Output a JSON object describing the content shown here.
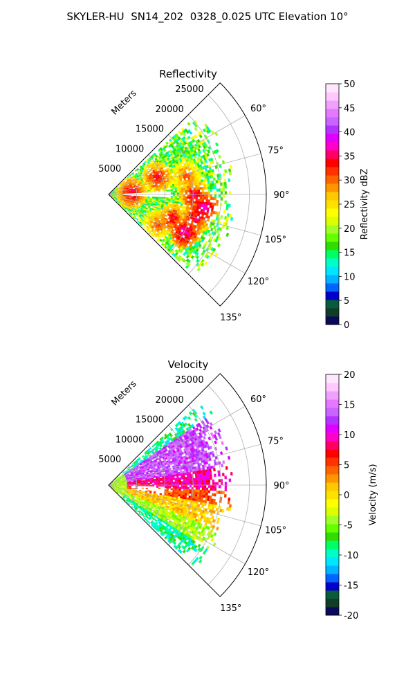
{
  "figure": {
    "title": "SKYLER-HU  SN14_202  0328_0.025 UTC Elevation 10°"
  },
  "colors": {
    "refl_colormap": [
      "#0a0a5a",
      "#103c28",
      "#0a5a3c",
      "#0000c8",
      "#0064ff",
      "#00b4ff",
      "#00e6ff",
      "#00ffc8",
      "#00ff64",
      "#32dc00",
      "#64ff00",
      "#a0ff28",
      "#dcff00",
      "#ffff00",
      "#ffe100",
      "#ffc800",
      "#ff9600",
      "#ff6400",
      "#ff3200",
      "#ff0000",
      "#ff0064",
      "#ff00c8",
      "#e100ff",
      "#b432ff",
      "#c864ff",
      "#e678ff",
      "#f0a0ff",
      "#ffc8ff",
      "#ffe6ff"
    ],
    "vel_colormap": [
      "#0a0a5a",
      "#103c28",
      "#0a5a3c",
      "#0000c8",
      "#0064ff",
      "#00b4ff",
      "#00e6ff",
      "#00ffc8",
      "#00ff64",
      "#32dc00",
      "#64ff00",
      "#a0ff28",
      "#dcff00",
      "#ffff00",
      "#ffe100",
      "#ffc800",
      "#ff9600",
      "#ff6400",
      "#ff3200",
      "#ff0000",
      "#ff0064",
      "#ff00c8",
      "#e100ff",
      "#b432ff",
      "#c864ff",
      "#e678ff",
      "#f0a0ff",
      "#ffc8ff",
      "#ffe6ff"
    ]
  },
  "chart_data": [
    {
      "type": "heatmap",
      "projection": "polar-sector",
      "title": "Reflectivity",
      "radial_label": "Meters",
      "radial_ticks": [
        5000,
        10000,
        15000,
        20000,
        25000
      ],
      "radial_tick_labels": [
        "5000",
        "10000",
        "15000",
        "20000",
        "25000"
      ],
      "r_max": 28000,
      "angle_ticks": [
        60,
        75,
        90,
        105,
        120,
        135
      ],
      "angle_tick_labels": [
        "60°",
        "75°",
        "90°",
        "105°",
        "120°",
        "135°"
      ],
      "sector_deg": [
        45,
        135
      ],
      "grid": true,
      "colorbar": {
        "label": "Reflectivity dBZ",
        "range": [
          0,
          50
        ],
        "ticks": [
          0,
          5,
          10,
          15,
          20,
          25,
          30,
          35,
          40,
          45,
          50
        ],
        "tick_labels": [
          "0",
          "5",
          "10",
          "15",
          "20",
          "25",
          "30",
          "35",
          "40",
          "45",
          "50"
        ]
      },
      "field": "reflectivity",
      "echo_extent_m": 20000,
      "typical_values_dbz": [
        12,
        35
      ],
      "cells": [
        {
          "azimuth_deg": 86,
          "range_m": 4000,
          "dbz": 34
        },
        {
          "azimuth_deg": 70,
          "range_m": 9000,
          "dbz": 33
        },
        {
          "azimuth_deg": 76,
          "range_m": 14000,
          "dbz": 30
        },
        {
          "azimuth_deg": 90,
          "range_m": 15000,
          "dbz": 34
        },
        {
          "azimuth_deg": 97,
          "range_m": 17000,
          "dbz": 36
        },
        {
          "azimuth_deg": 104,
          "range_m": 16000,
          "dbz": 34
        },
        {
          "azimuth_deg": 110,
          "range_m": 12000,
          "dbz": 33
        },
        {
          "azimuth_deg": 116,
          "range_m": 15000,
          "dbz": 36
        },
        {
          "azimuth_deg": 121,
          "range_m": 10000,
          "dbz": 30
        }
      ]
    },
    {
      "type": "heatmap",
      "projection": "polar-sector",
      "title": "Velocity",
      "radial_label": "Meters",
      "radial_ticks": [
        5000,
        10000,
        15000,
        20000,
        25000
      ],
      "radial_tick_labels": [
        "5000",
        "10000",
        "15000",
        "20000",
        "25000"
      ],
      "r_max": 28000,
      "angle_ticks": [
        60,
        75,
        90,
        105,
        120,
        135
      ],
      "angle_tick_labels": [
        "60°",
        "75°",
        "90°",
        "105°",
        "120°",
        "135°"
      ],
      "sector_deg": [
        45,
        135
      ],
      "grid": true,
      "colorbar": {
        "label": "Velocity (m/s)",
        "range": [
          -20,
          20
        ],
        "ticks": [
          -20,
          -15,
          -10,
          -5,
          0,
          5,
          10,
          15,
          20
        ],
        "tick_labels": [
          "-20",
          "-15",
          "-10",
          "-5",
          "0",
          "5",
          "10",
          "15",
          "20"
        ]
      },
      "field": "radial velocity",
      "echo_extent_m": 20000,
      "azimuth_bands": [
        {
          "from_deg": 55,
          "to_deg": 80,
          "velocity_ms": 13
        },
        {
          "from_deg": 80,
          "to_deg": 92,
          "velocity_ms": 9
        },
        {
          "from_deg": 92,
          "to_deg": 100,
          "velocity_ms": 5
        },
        {
          "from_deg": 100,
          "to_deg": 112,
          "velocity_ms": 1
        },
        {
          "from_deg": 112,
          "to_deg": 122,
          "velocity_ms": -4
        },
        {
          "from_deg": 122,
          "to_deg": 132,
          "velocity_ms": -9
        }
      ]
    }
  ]
}
